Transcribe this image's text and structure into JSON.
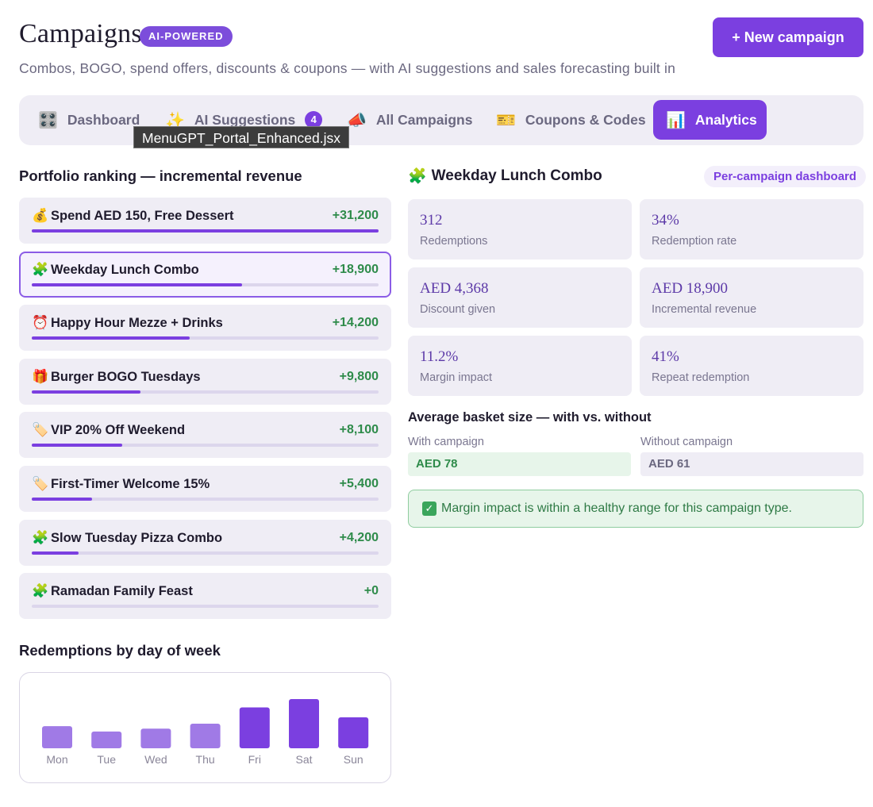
{
  "header": {
    "title": "Campaigns",
    "badge": "AI-POWERED",
    "subtitle": "Combos, BOGO, spend offers, discounts & coupons — with AI suggestions and sales forecasting built in",
    "new_campaign_label": "+ New campaign"
  },
  "tabs": [
    {
      "label": "Dashboard",
      "icon": "🎛️",
      "icon_name": "control-knobs-icon",
      "active": false
    },
    {
      "label": "AI Suggestions",
      "icon": "✨",
      "icon_name": "sparkles-icon",
      "count": "4",
      "active": false
    },
    {
      "label": "All Campaigns",
      "icon": "📣",
      "icon_name": "megaphone-icon",
      "active": false
    },
    {
      "label": "Coupons & Codes",
      "icon": "🎫",
      "icon_name": "ticket-icon",
      "active": false
    },
    {
      "label": "Analytics",
      "icon": "📊",
      "icon_name": "bar-chart-icon",
      "active": true
    }
  ],
  "tooltip": "MenuGPT_Portal_Enhanced.jsx",
  "ranking": {
    "title": "Portfolio ranking — incremental revenue",
    "items": [
      {
        "icon": "💰",
        "icon_name": "money-bag-icon",
        "name": "Spend AED 150, Free Dessert",
        "value": "+31,200",
        "fill": 1.0
      },
      {
        "icon": "🧩",
        "icon_name": "puzzle-piece-icon",
        "name": "Weekday Lunch Combo",
        "value": "+18,900",
        "fill": 0.606,
        "selected": true
      },
      {
        "icon": "⏰",
        "icon_name": "alarm-clock-icon",
        "name": "Happy Hour Mezze + Drinks",
        "value": "+14,200",
        "fill": 0.455
      },
      {
        "icon": "🎁",
        "icon_name": "gift-icon",
        "name": "Burger BOGO Tuesdays",
        "value": "+9,800",
        "fill": 0.314
      },
      {
        "icon": "🏷️",
        "icon_name": "label-tag-icon",
        "name": "VIP 20% Off Weekend",
        "value": "+8,100",
        "fill": 0.26
      },
      {
        "icon": "🏷️",
        "icon_name": "label-tag-icon",
        "name": "First-Timer Welcome 15%",
        "value": "+5,400",
        "fill": 0.173
      },
      {
        "icon": "🧩",
        "icon_name": "puzzle-piece-icon",
        "name": "Slow Tuesday Pizza Combo",
        "value": "+4,200",
        "fill": 0.135
      },
      {
        "icon": "🧩",
        "icon_name": "puzzle-piece-icon",
        "name": "Ramadan Family Feast",
        "value": "+0",
        "fill": 0.0
      }
    ]
  },
  "chart_title": "Redemptions by day of week",
  "chart_data": {
    "type": "bar",
    "categories": [
      "Mon",
      "Tue",
      "Wed",
      "Thu",
      "Fri",
      "Sat",
      "Sun"
    ],
    "values": [
      45,
      34,
      40,
      50,
      83,
      100,
      63
    ],
    "highlight": [
      false,
      false,
      false,
      false,
      true,
      true,
      true
    ],
    "colors": {
      "normal": "#a07ae6",
      "highlight": "#7b3fe0"
    },
    "xlabel": "",
    "ylabel": "",
    "grid": false
  },
  "detail": {
    "icon": "🧩",
    "icon_name": "puzzle-piece-icon",
    "title": "Weekday Lunch Combo",
    "badge": "Per-campaign dashboard",
    "metrics": [
      {
        "value": "312",
        "label": "Redemptions"
      },
      {
        "value": "34%",
        "label": "Redemption rate"
      },
      {
        "value": "AED 4,368",
        "label": "Discount given"
      },
      {
        "value": "AED 18,900",
        "label": "Incremental revenue"
      },
      {
        "value": "11.2%",
        "label": "Margin impact"
      },
      {
        "value": "41%",
        "label": "Repeat redemption"
      }
    ],
    "basket": {
      "title": "Average basket size — with vs. without",
      "with_label": "With campaign",
      "with_value": "AED 78",
      "without_label": "Without campaign",
      "without_value": "AED 61"
    },
    "notice": "Margin impact is within a healthy range for this campaign type."
  },
  "colors": {
    "accent": "#7b3fe0",
    "positive": "#2e8b4a"
  }
}
